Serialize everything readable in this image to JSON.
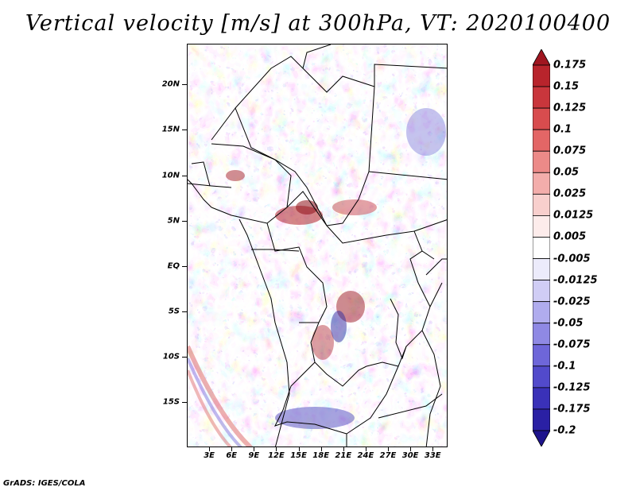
{
  "title": "Vertical velocity [m/s] at 300hPa, VT: 2020100400",
  "footer": "GrADS: IGES/COLA",
  "map": {
    "lat_labels": [
      "20N",
      "15N",
      "10N",
      "5N",
      "EQ",
      "5S",
      "10S",
      "15S"
    ],
    "lon_labels": [
      "3E",
      "6E",
      "9E",
      "12E",
      "15E",
      "18E",
      "21E",
      "24E",
      "27E",
      "30E",
      "33E"
    ],
    "lat_values": [
      20,
      15,
      10,
      5,
      0,
      -5,
      -10,
      -15
    ],
    "lon_values": [
      3,
      6,
      9,
      12,
      15,
      18,
      21,
      24,
      27,
      30,
      33
    ],
    "lon_range": [
      0,
      35
    ],
    "lat_range": [
      -20,
      24.5
    ]
  },
  "colorbar": {
    "levels": [
      "0.175",
      "0.15",
      "0.125",
      "0.1",
      "0.075",
      "0.05",
      "0.025",
      "0.0125",
      "0.005",
      "-0.005",
      "-0.0125",
      "-0.025",
      "-0.05",
      "-0.075",
      "-0.1",
      "-0.125",
      "-0.175",
      "-0.2"
    ],
    "colors": [
      "#a01620",
      "#b8242c",
      "#c9363c",
      "#d84c4e",
      "#e36666",
      "#ec8a88",
      "#f3adab",
      "#f8cfcd",
      "#fdeceb",
      "#ffffff",
      "#ecebfb",
      "#d0cdf5",
      "#b0acee",
      "#8f89e4",
      "#6e66d9",
      "#524acb",
      "#3a31b8",
      "#2a20a4",
      "#1e148c"
    ],
    "top_arrow_color": "#a01620",
    "bottom_arrow_color": "#1e148c"
  }
}
